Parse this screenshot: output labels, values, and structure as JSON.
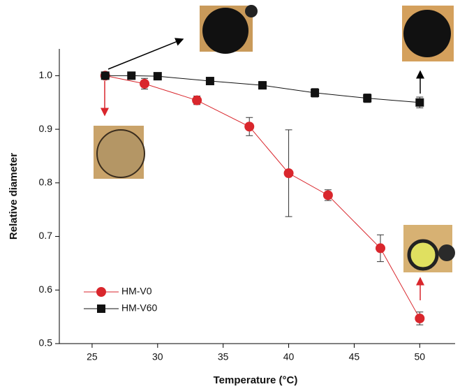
{
  "chart_data": {
    "type": "scatter",
    "x_label": "Temperature (°C)",
    "y_label": "Relative diameter",
    "xlim": [
      22.5,
      52.7
    ],
    "xticks": [
      25,
      30,
      35,
      40,
      45,
      50
    ],
    "ylim": [
      0.5,
      1.05
    ],
    "yticks": [
      {
        "value": 0.5,
        "label": "0.5"
      },
      {
        "value": 0.6,
        "label": "0.6"
      },
      {
        "value": 0.7,
        "label": "0.7"
      },
      {
        "value": 0.8,
        "label": "0.8"
      },
      {
        "value": 0.9,
        "label": "0.9"
      },
      {
        "value": 1.0,
        "label": "1.0"
      }
    ],
    "series": [
      {
        "name": "HM-V0",
        "color": "#d9262c",
        "marker": "circle",
        "x": [
          26,
          29,
          33,
          37,
          40,
          43,
          47,
          50
        ],
        "values": [
          1.0,
          0.985,
          0.954,
          0.905,
          0.818,
          0.777,
          0.678,
          0.547
        ],
        "errors": [
          0.003,
          0.01,
          0.008,
          0.017,
          0.081,
          0.01,
          0.025,
          0.012
        ]
      },
      {
        "name": "HM-V60",
        "color": "#111111",
        "marker": "square",
        "x": [
          26,
          28,
          30,
          34,
          38,
          42,
          46,
          50
        ],
        "values": [
          1.0,
          1.0,
          0.999,
          0.99,
          0.982,
          0.968,
          0.958,
          0.95
        ],
        "errors": [
          0.003,
          0.004,
          0.004,
          0.006,
          0.007,
          0.008,
          0.008,
          0.01
        ]
      }
    ]
  }
}
